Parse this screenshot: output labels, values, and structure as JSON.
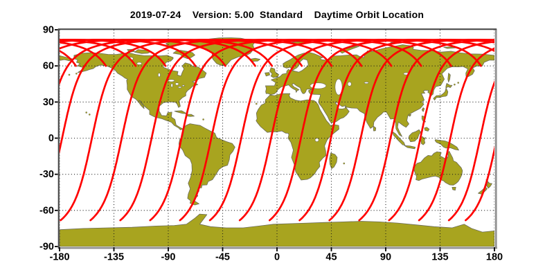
{
  "title": "2019-07-24    Version: 5.00  Standard    Daytime Orbit Location",
  "colors": {
    "background": "#ffffff",
    "land": "#a8a41f",
    "coastline": "#6b6b58",
    "water": "#ffffff",
    "orbit_track": "#ff0000",
    "grid": "#1a1a1a",
    "frame_dark": "#4a4a4a",
    "frame_light": "#909090",
    "text": "#000000"
  },
  "x_axis": {
    "tick_labels": [
      "-180",
      "-135",
      "-90",
      "-45",
      "0",
      "45",
      "90",
      "135",
      "180"
    ],
    "tick_values": [
      -180,
      -135,
      -90,
      -45,
      0,
      45,
      90,
      135,
      180
    ],
    "min": -180,
    "max": 180
  },
  "y_axis": {
    "tick_labels": [
      "90",
      "60",
      "30",
      "0",
      "-30",
      "-60",
      "-90"
    ],
    "tick_values": [
      90,
      60,
      30,
      0,
      -30,
      -60,
      -90
    ],
    "min": -90,
    "max": 90
  },
  "chart_data": {
    "type": "line",
    "subtype": "satellite-daytime-ground-tracks-on-equirectangular-world-map",
    "title": "2019-07-24    Version: 5.00  Standard    Daytime Orbit Location",
    "xlabel": "",
    "ylabel": "",
    "xlim": [
      -180,
      180
    ],
    "ylim": [
      -90,
      90
    ],
    "grid": {
      "on": true,
      "style": "dotted",
      "x_step_deg": 45,
      "y_step_deg": 30
    },
    "legend": "none",
    "orbit": {
      "track_color": "#ff0000",
      "inclination_deg": 98.2,
      "max_latitude_deg": 81.8,
      "node_spacing_deg": 24.725,
      "earth_rotation_deg_per_orbit_deg": 0.0687,
      "descending_node_longitudes_deg": [
        -177.9,
        -153.2,
        -128.5,
        -103.8,
        -79.1,
        -54.4,
        -29.6,
        -4.9,
        19.8,
        44.6,
        69.3,
        94.0,
        118.7,
        143.5,
        168.2
      ],
      "north_daylight_cutoff_lat_deg": 60.0,
      "south_daylight_cutoff_lat_deg": -68.5,
      "arg_lat_start_deg": 61.0,
      "arg_lat_end_deg": 250.0
    }
  }
}
